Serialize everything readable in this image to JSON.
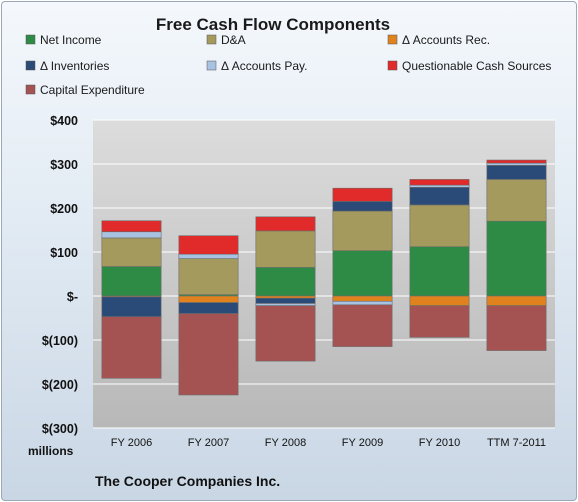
{
  "chart_data": {
    "type": "bar",
    "stacked": true,
    "title": "Free Cash Flow Components",
    "units_label": "millions",
    "footer": "The Cooper Companies Inc.",
    "categories": [
      "FY 2006",
      "FY 2007",
      "FY 2008",
      "FY 2009",
      "FY 2010",
      "TTM 7-2011"
    ],
    "ylim": [
      -300,
      400
    ],
    "yticks": [
      -300,
      -200,
      -100,
      0,
      100,
      200,
      300,
      400
    ],
    "ytick_labels": [
      "$(300)",
      "$(200)",
      "$(100)",
      "$-",
      "$100",
      "$200",
      "$300",
      "$400"
    ],
    "grid": true,
    "legend_position": "top",
    "series": [
      {
        "name": "Net Income",
        "color": "#2e8b45",
        "values": [
          67,
          3,
          65,
          103,
          112,
          170
        ]
      },
      {
        "name": "D&A",
        "color": "#a49a5e",
        "values": [
          65,
          82,
          83,
          90,
          95,
          95
        ]
      },
      {
        "name": "Δ Accounts Rec.",
        "color": "#e0821e",
        "values": [
          -2,
          -15,
          -5,
          -12,
          -22,
          -22
        ]
      },
      {
        "name": "Δ Inventories",
        "color": "#2a4a78",
        "values": [
          -45,
          -25,
          -12,
          22,
          40,
          32
        ]
      },
      {
        "name": "Δ Accounts Pay.",
        "color": "#a8c2e2",
        "values": [
          14,
          10,
          -5,
          -8,
          5,
          5
        ]
      },
      {
        "name": "Questionable Cash Sources",
        "color": "#e12a2a",
        "values": [
          25,
          42,
          32,
          30,
          13,
          7
        ]
      },
      {
        "name": "Capital Expenditure",
        "color": "#a55252",
        "values": [
          -140,
          -185,
          -126,
          -95,
          -72,
          -102
        ]
      }
    ]
  }
}
